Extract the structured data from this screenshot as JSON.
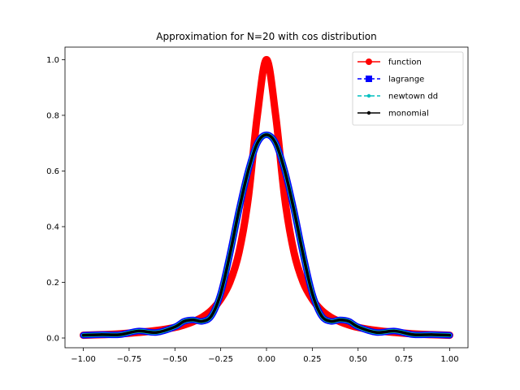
{
  "chart_data": {
    "type": "line",
    "title": "Approximation for N=20 with cos distribution",
    "xlabel": "",
    "ylabel": "",
    "xlim": [
      -1.1,
      1.1
    ],
    "ylim": [
      -0.035,
      1.045
    ],
    "xticks": [
      -1.0,
      -0.75,
      -0.5,
      -0.25,
      0.0,
      0.25,
      0.5,
      0.75,
      1.0
    ],
    "xtick_labels": [
      "−1.00",
      "−0.75",
      "−0.50",
      "−0.25",
      "0.00",
      "0.25",
      "0.50",
      "0.75",
      "1.00"
    ],
    "yticks": [
      0.0,
      0.2,
      0.4,
      0.6,
      0.8,
      1.0
    ],
    "ytick_labels": [
      "0.0",
      "0.2",
      "0.4",
      "0.6",
      "0.8",
      "1.0"
    ],
    "grid": false,
    "legend_position": "top-right",
    "x": [
      -1.0,
      -0.9,
      -0.8,
      -0.7,
      -0.6,
      -0.5,
      -0.45,
      -0.4,
      -0.35,
      -0.3,
      -0.25,
      -0.2,
      -0.15,
      -0.1,
      -0.05,
      0.0,
      0.05,
      0.1,
      0.15,
      0.2,
      0.25,
      0.3,
      0.35,
      0.4,
      0.45,
      0.5,
      0.6,
      0.7,
      0.8,
      0.9,
      1.0
    ],
    "series": [
      {
        "name": "function",
        "color": "#ff0000",
        "linestyle": "solid",
        "marker": "circle",
        "values": [
          0.01,
          0.012,
          0.015,
          0.02,
          0.027,
          0.038,
          0.047,
          0.059,
          0.075,
          0.1,
          0.139,
          0.2,
          0.308,
          0.5,
          0.8,
          1.0,
          0.8,
          0.5,
          0.308,
          0.2,
          0.139,
          0.1,
          0.075,
          0.059,
          0.047,
          0.038,
          0.027,
          0.02,
          0.015,
          0.012,
          0.01
        ]
      },
      {
        "name": "lagrange",
        "color": "#0000ff",
        "linestyle": "dashed",
        "marker": "square",
        "values": [
          0.01,
          0.012,
          0.012,
          0.025,
          0.02,
          0.04,
          0.06,
          0.065,
          0.06,
          0.08,
          0.16,
          0.3,
          0.46,
          0.6,
          0.7,
          0.73,
          0.7,
          0.6,
          0.46,
          0.3,
          0.16,
          0.08,
          0.06,
          0.065,
          0.06,
          0.04,
          0.02,
          0.025,
          0.012,
          0.012,
          0.01
        ]
      },
      {
        "name": "newtown dd",
        "color": "#00bfbf",
        "linestyle": "dashed",
        "marker": "dot",
        "values": [
          0.01,
          0.012,
          0.012,
          0.025,
          0.02,
          0.04,
          0.06,
          0.065,
          0.06,
          0.08,
          0.16,
          0.3,
          0.46,
          0.6,
          0.7,
          0.73,
          0.7,
          0.6,
          0.46,
          0.3,
          0.16,
          0.08,
          0.06,
          0.065,
          0.06,
          0.04,
          0.02,
          0.025,
          0.012,
          0.012,
          0.01
        ]
      },
      {
        "name": "monomial",
        "color": "#000000",
        "linestyle": "solid",
        "marker": "dot",
        "values": [
          0.01,
          0.012,
          0.012,
          0.025,
          0.02,
          0.04,
          0.06,
          0.065,
          0.06,
          0.08,
          0.16,
          0.3,
          0.46,
          0.6,
          0.7,
          0.73,
          0.7,
          0.6,
          0.46,
          0.3,
          0.16,
          0.08,
          0.06,
          0.065,
          0.06,
          0.04,
          0.02,
          0.025,
          0.012,
          0.012,
          0.01
        ]
      }
    ]
  }
}
